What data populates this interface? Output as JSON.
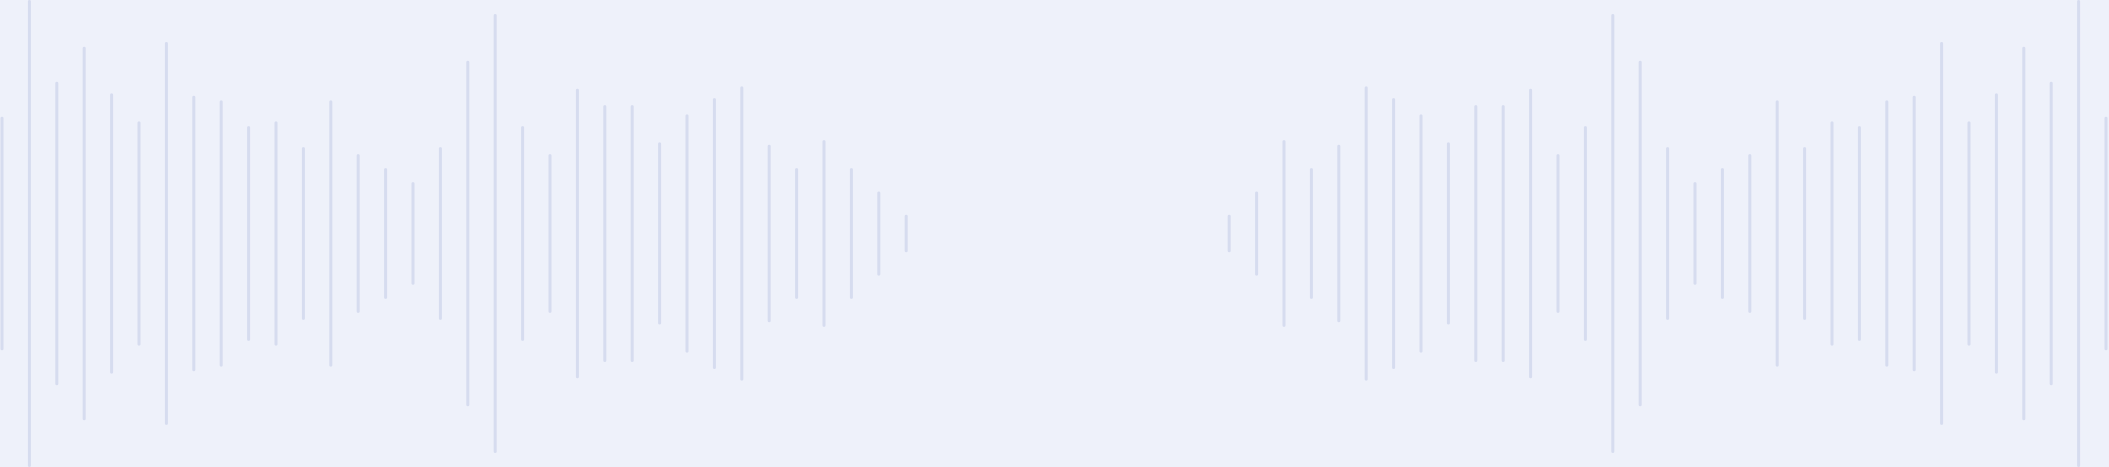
{
  "colors": {
    "background": "#eef1fa",
    "bar": "#d6dcef"
  },
  "waveform": {
    "bar_levels": [
      0.5,
      1.0,
      0.65,
      0.8,
      0.6,
      0.48,
      0.82,
      0.59,
      0.57,
      0.46,
      0.48,
      0.37,
      0.57,
      0.34,
      0.28,
      0.22,
      0.37,
      0.74,
      0.94,
      0.46,
      0.34,
      0.62,
      0.55,
      0.55,
      0.39,
      0.51,
      0.58,
      0.63,
      0.38,
      0.28,
      0.4,
      0.28,
      0.18,
      0.08,
      0.08,
      0.18,
      0.4,
      0.28,
      0.38,
      0.63,
      0.58,
      0.51,
      0.39,
      0.55,
      0.55,
      0.62,
      0.34,
      0.46,
      0.94,
      0.74,
      0.37,
      0.22,
      0.28,
      0.34,
      0.57,
      0.37,
      0.48,
      0.46,
      0.57,
      0.59,
      0.82,
      0.48,
      0.6,
      0.8,
      0.65,
      1.0,
      0.5
    ]
  }
}
